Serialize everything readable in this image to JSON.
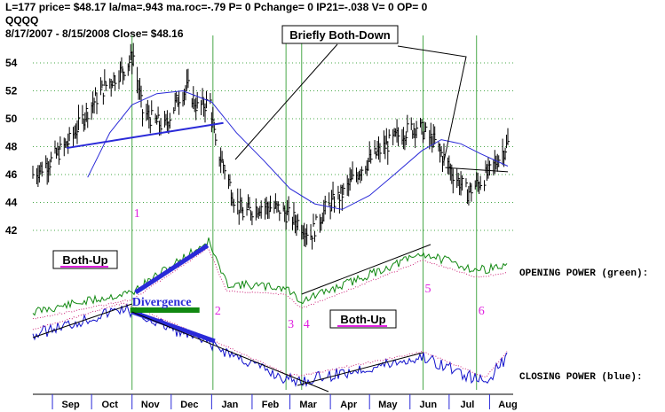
{
  "header": {
    "line1": "L=177  price= $48.17  la/ma=.943  ma.roc=-.79 P=   0 Pchange=  0 IP21=-.038 V= 0 OP= 0",
    "ticker": "QQQQ",
    "line3": "8/17/2007 - 8/15/2008    Close= $48.16"
  },
  "colors": {
    "grid": "#4aa84a",
    "price": "#000000",
    "ma": "#2a2ad8",
    "trendline": "#2a2ad8",
    "opening_power": "#118811",
    "closing_power": "#1111cc",
    "signal_text": "#e020e0",
    "divergence_bar": "#118811",
    "annotation_line": "#000000",
    "dotted_ma": "#cc2277"
  },
  "chart_data": {
    "type": "line",
    "title": "",
    "xlabel": "",
    "ylabel": "",
    "ylim": [
      40.5,
      56
    ],
    "y_ticks": [
      42,
      44,
      46,
      48,
      50,
      52,
      54
    ],
    "x_month_labels": [
      "Sep",
      "Oct",
      "Nov",
      "Dec",
      "Jan",
      "Feb",
      "Mar",
      "Apr",
      "May",
      "Jun",
      "Jul",
      "Aug"
    ],
    "x_months": [
      "2007-09",
      "2007-10",
      "2007-11",
      "2007-12",
      "2008-01",
      "2008-02",
      "2008-03",
      "2008-04",
      "2008-05",
      "2008-06",
      "2008-07",
      "2008-08"
    ],
    "price_close_points": [
      {
        "x": "2007-08-17",
        "y": 46.0
      },
      {
        "x": "2007-08-31",
        "y": 47.0
      },
      {
        "x": "2007-09-14",
        "y": 48.4
      },
      {
        "x": "2007-09-28",
        "y": 50.6
      },
      {
        "x": "2007-10-12",
        "y": 52.4
      },
      {
        "x": "2007-10-26",
        "y": 53.6
      },
      {
        "x": "2007-11-02",
        "y": 54.5
      },
      {
        "x": "2007-11-09",
        "y": 50.5
      },
      {
        "x": "2007-11-16",
        "y": 50.0
      },
      {
        "x": "2007-11-26",
        "y": 49.4
      },
      {
        "x": "2007-12-07",
        "y": 51.6
      },
      {
        "x": "2007-12-14",
        "y": 52.2
      },
      {
        "x": "2007-12-21",
        "y": 50.8
      },
      {
        "x": "2007-12-31",
        "y": 51.2
      },
      {
        "x": "2008-01-04",
        "y": 48.0
      },
      {
        "x": "2008-01-11",
        "y": 46.5
      },
      {
        "x": "2008-01-18",
        "y": 44.3
      },
      {
        "x": "2008-01-25",
        "y": 43.2
      },
      {
        "x": "2008-02-08",
        "y": 43.8
      },
      {
        "x": "2008-02-22",
        "y": 43.5
      },
      {
        "x": "2008-03-07",
        "y": 42.6
      },
      {
        "x": "2008-03-17",
        "y": 41.7
      },
      {
        "x": "2008-03-28",
        "y": 43.5
      },
      {
        "x": "2008-04-11",
        "y": 44.7
      },
      {
        "x": "2008-04-25",
        "y": 46.5
      },
      {
        "x": "2008-05-09",
        "y": 47.7
      },
      {
        "x": "2008-05-23",
        "y": 48.8
      },
      {
        "x": "2008-06-06",
        "y": 49.5
      },
      {
        "x": "2008-06-20",
        "y": 48.3
      },
      {
        "x": "2008-07-03",
        "y": 46.2
      },
      {
        "x": "2008-07-15",
        "y": 44.7
      },
      {
        "x": "2008-07-25",
        "y": 45.5
      },
      {
        "x": "2008-08-01",
        "y": 46.2
      },
      {
        "x": "2008-08-15",
        "y": 48.2
      }
    ],
    "moving_average_points": [
      {
        "x": "2007-09-28",
        "y": 45.8
      },
      {
        "x": "2007-10-15",
        "y": 49.0
      },
      {
        "x": "2007-11-01",
        "y": 51.0
      },
      {
        "x": "2007-11-20",
        "y": 51.8
      },
      {
        "x": "2007-12-10",
        "y": 52.0
      },
      {
        "x": "2008-01-01",
        "y": 51.2
      },
      {
        "x": "2008-01-20",
        "y": 49.0
      },
      {
        "x": "2008-02-10",
        "y": 47.0
      },
      {
        "x": "2008-03-01",
        "y": 45.0
      },
      {
        "x": "2008-03-20",
        "y": 43.9
      },
      {
        "x": "2008-04-10",
        "y": 43.5
      },
      {
        "x": "2008-05-01",
        "y": 44.5
      },
      {
        "x": "2008-05-20",
        "y": 46.0
      },
      {
        "x": "2008-06-10",
        "y": 47.7
      },
      {
        "x": "2008-06-25",
        "y": 48.5
      },
      {
        "x": "2008-07-10",
        "y": 48.2
      },
      {
        "x": "2008-07-25",
        "y": 47.5
      },
      {
        "x": "2008-08-15",
        "y": 46.6
      }
    ],
    "signals": [
      {
        "label": "1",
        "date": "2007-11-01"
      },
      {
        "label": "2",
        "date": "2008-01-02"
      },
      {
        "label": "3",
        "date": "2008-02-27"
      },
      {
        "label": "4",
        "date": "2008-03-10"
      },
      {
        "label": "5",
        "date": "2008-06-11"
      },
      {
        "label": "6",
        "date": "2008-07-22"
      }
    ],
    "annotations": {
      "briefly_both_down": "Briefly Both-Down",
      "both_up_left": "Both-Up",
      "both_up_right": "Both-Up",
      "divergence": "Divergence"
    },
    "series_labels": {
      "opening_power": "OPENING POWER (green):",
      "closing_power": "CLOSING POWER (blue):"
    }
  }
}
